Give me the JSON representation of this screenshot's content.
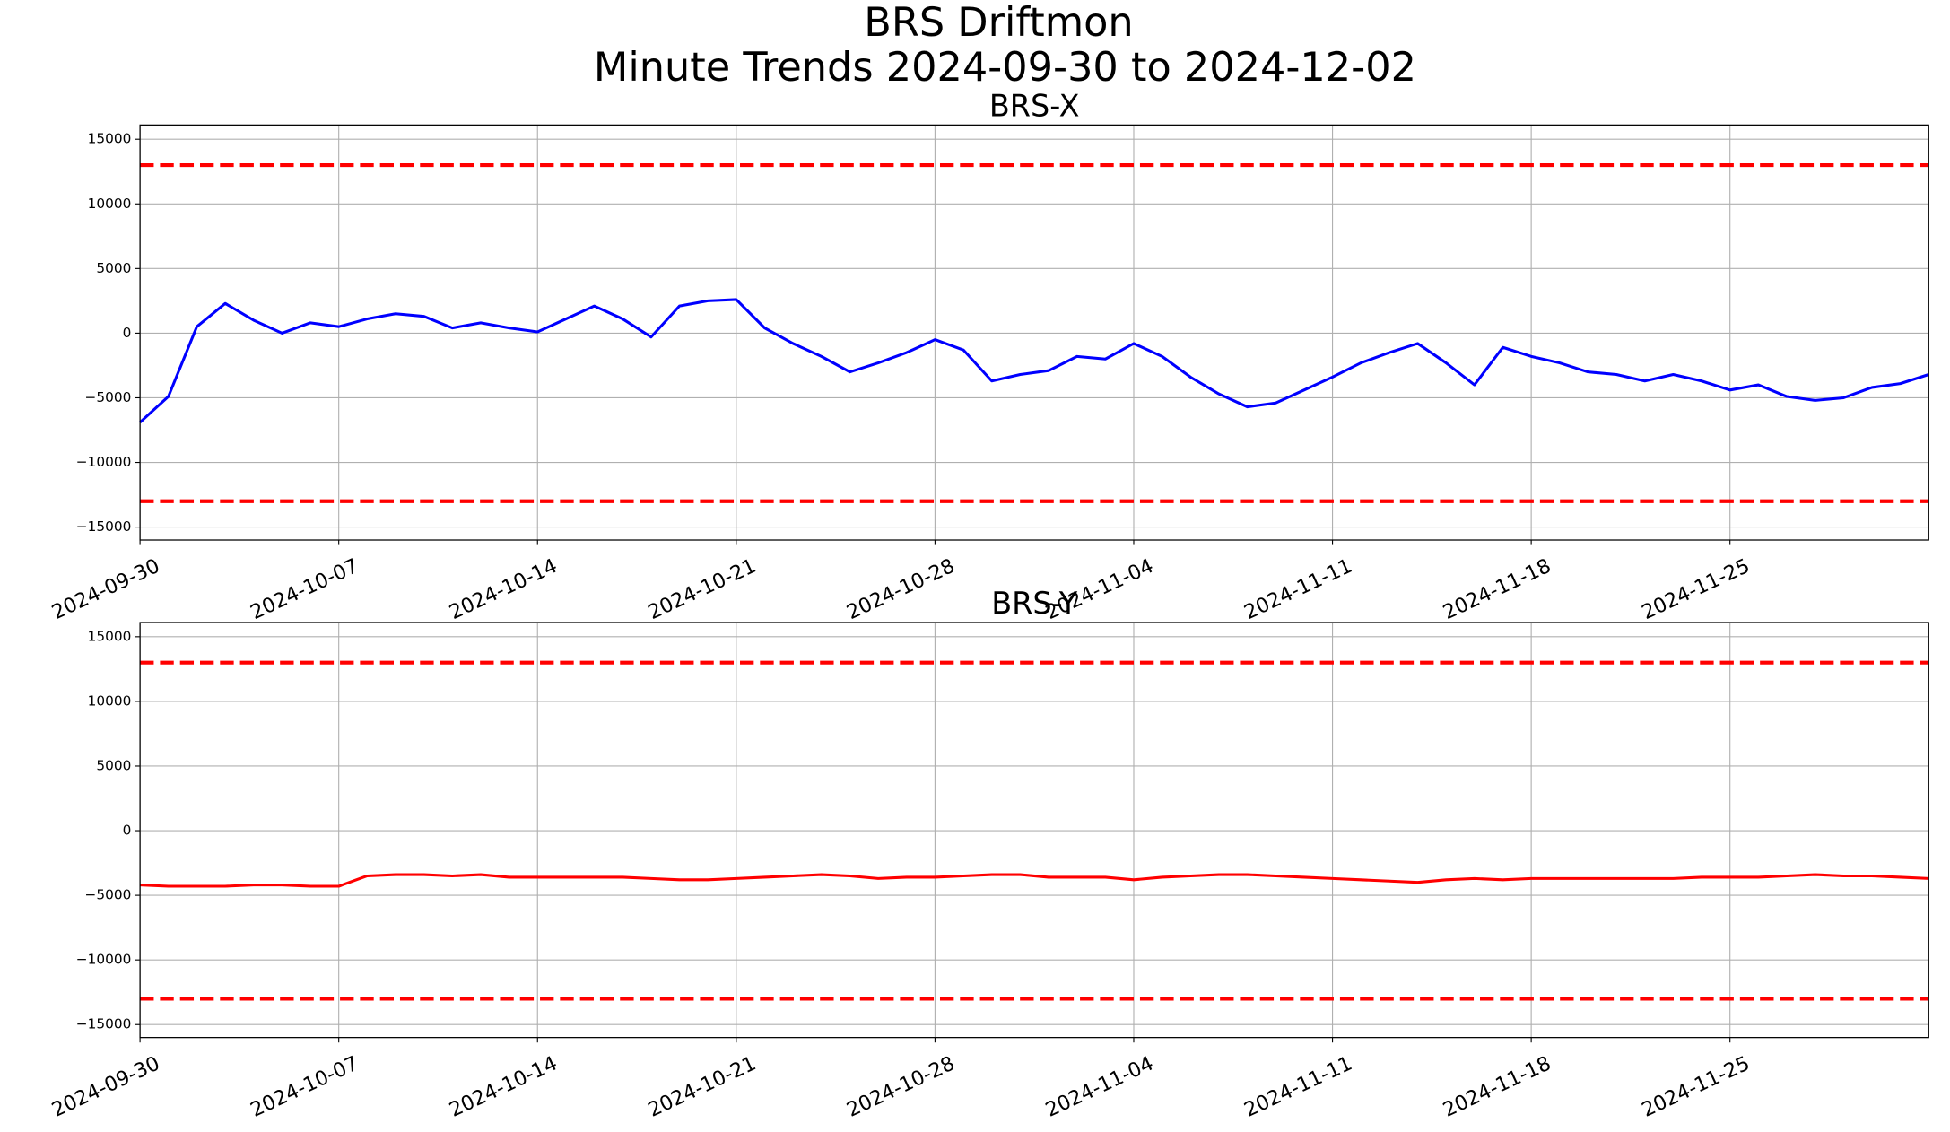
{
  "title": [
    "BRS Driftmon",
    "Minute Trends 2024-09-30  to 2024-12-02"
  ],
  "chart_data": [
    {
      "type": "line",
      "title": "BRS-X",
      "x": [
        "2024-09-30",
        "2024-10-01",
        "2024-10-02",
        "2024-10-03",
        "2024-10-04",
        "2024-10-05",
        "2024-10-06",
        "2024-10-07",
        "2024-10-08",
        "2024-10-09",
        "2024-10-10",
        "2024-10-11",
        "2024-10-12",
        "2024-10-13",
        "2024-10-14",
        "2024-10-15",
        "2024-10-16",
        "2024-10-17",
        "2024-10-18",
        "2024-10-19",
        "2024-10-20",
        "2024-10-21",
        "2024-10-22",
        "2024-10-23",
        "2024-10-24",
        "2024-10-25",
        "2024-10-26",
        "2024-10-27",
        "2024-10-28",
        "2024-10-29",
        "2024-10-30",
        "2024-10-31",
        "2024-11-01",
        "2024-11-02",
        "2024-11-03",
        "2024-11-04",
        "2024-11-05",
        "2024-11-06",
        "2024-11-07",
        "2024-11-08",
        "2024-11-09",
        "2024-11-10",
        "2024-11-11",
        "2024-11-12",
        "2024-11-13",
        "2024-11-14",
        "2024-11-15",
        "2024-11-16",
        "2024-11-17",
        "2024-11-18",
        "2024-11-19",
        "2024-11-20",
        "2024-11-21",
        "2024-11-22",
        "2024-11-23",
        "2024-11-24",
        "2024-11-25",
        "2024-11-26",
        "2024-11-27",
        "2024-11-28",
        "2024-11-29",
        "2024-11-30",
        "2024-12-01",
        "2024-12-02"
      ],
      "series": [
        {
          "color": "#0000ff",
          "values": [
            -6900,
            -4900,
            500,
            2300,
            1000,
            0,
            800,
            500,
            1100,
            1500,
            1300,
            400,
            800,
            400,
            100,
            1100,
            2100,
            1100,
            -300,
            2100,
            2500,
            2600,
            400,
            -800,
            -1800,
            -3000,
            -2300,
            -1500,
            -500,
            -1300,
            -3700,
            -3200,
            -2900,
            -1800,
            -2000,
            -800,
            -1800,
            -3400,
            -4700,
            -5700,
            -5400,
            -4400,
            -3400,
            -2300,
            -1500,
            -800,
            -2300,
            -4000,
            -1100,
            -1800,
            -2300,
            -3000,
            -3200,
            -3700,
            -3200,
            -3700,
            -4400,
            -4000,
            -4900,
            -5200,
            -5000,
            -4200,
            -3900,
            -3200
          ]
        }
      ],
      "thresholds": [
        13000,
        -13000
      ],
      "threshold_color": "#ff0000",
      "xlim": [
        "2024-09-30",
        "2024-12-02"
      ],
      "xticks": [
        "2024-09-30",
        "2024-10-07",
        "2024-10-14",
        "2024-10-21",
        "2024-10-28",
        "2024-11-04",
        "2024-11-11",
        "2024-11-18",
        "2024-11-25"
      ],
      "ylim": [
        -16000,
        16100
      ],
      "yticks": [
        {
          "value": -15000,
          "label": "−15000"
        },
        {
          "value": -10000,
          "label": "−10000"
        },
        {
          "value": -5000,
          "label": "−5000"
        },
        0,
        5000,
        10000,
        15000
      ],
      "grid": true
    },
    {
      "type": "line",
      "title": "BRS-Y",
      "x": [
        "2024-09-30",
        "2024-10-01",
        "2024-10-02",
        "2024-10-03",
        "2024-10-04",
        "2024-10-05",
        "2024-10-06",
        "2024-10-07",
        "2024-10-08",
        "2024-10-09",
        "2024-10-10",
        "2024-10-11",
        "2024-10-12",
        "2024-10-13",
        "2024-10-14",
        "2024-10-15",
        "2024-10-16",
        "2024-10-17",
        "2024-10-18",
        "2024-10-19",
        "2024-10-20",
        "2024-10-21",
        "2024-10-22",
        "2024-10-23",
        "2024-10-24",
        "2024-10-25",
        "2024-10-26",
        "2024-10-27",
        "2024-10-28",
        "2024-10-29",
        "2024-10-30",
        "2024-10-31",
        "2024-11-01",
        "2024-11-02",
        "2024-11-03",
        "2024-11-04",
        "2024-11-05",
        "2024-11-06",
        "2024-11-07",
        "2024-11-08",
        "2024-11-09",
        "2024-11-10",
        "2024-11-11",
        "2024-11-12",
        "2024-11-13",
        "2024-11-14",
        "2024-11-15",
        "2024-11-16",
        "2024-11-17",
        "2024-11-18",
        "2024-11-19",
        "2024-11-20",
        "2024-11-21",
        "2024-11-22",
        "2024-11-23",
        "2024-11-24",
        "2024-11-25",
        "2024-11-26",
        "2024-11-27",
        "2024-11-28",
        "2024-11-29",
        "2024-11-30",
        "2024-12-01",
        "2024-12-02"
      ],
      "series": [
        {
          "color": "#ff0000",
          "values": [
            -4200,
            -4300,
            -4300,
            -4300,
            -4200,
            -4200,
            -4300,
            -4300,
            -3500,
            -3400,
            -3400,
            -3500,
            -3400,
            -3600,
            -3600,
            -3600,
            -3600,
            -3600,
            -3700,
            -3800,
            -3800,
            -3700,
            -3600,
            -3500,
            -3400,
            -3500,
            -3700,
            -3600,
            -3600,
            -3500,
            -3400,
            -3400,
            -3600,
            -3600,
            -3600,
            -3800,
            -3600,
            -3500,
            -3400,
            -3400,
            -3500,
            -3600,
            -3700,
            -3800,
            -3900,
            -4000,
            -3800,
            -3700,
            -3800,
            -3700,
            -3700,
            -3700,
            -3700,
            -3700,
            -3700,
            -3600,
            -3600,
            -3600,
            -3500,
            -3400,
            -3500,
            -3500,
            -3600,
            -3700
          ]
        }
      ],
      "thresholds": [
        13000,
        -13000
      ],
      "threshold_color": "#ff0000",
      "xlim": [
        "2024-09-30",
        "2024-12-02"
      ],
      "xticks": [
        "2024-09-30",
        "2024-10-07",
        "2024-10-14",
        "2024-10-21",
        "2024-10-28",
        "2024-11-04",
        "2024-11-11",
        "2024-11-18",
        "2024-11-25"
      ],
      "ylim": [
        -16000,
        16100
      ],
      "yticks": [
        {
          "value": -15000,
          "label": "−15000"
        },
        {
          "value": -10000,
          "label": "−10000"
        },
        {
          "value": -5000,
          "label": "−5000"
        },
        0,
        5000,
        10000,
        15000
      ],
      "grid": true
    }
  ]
}
